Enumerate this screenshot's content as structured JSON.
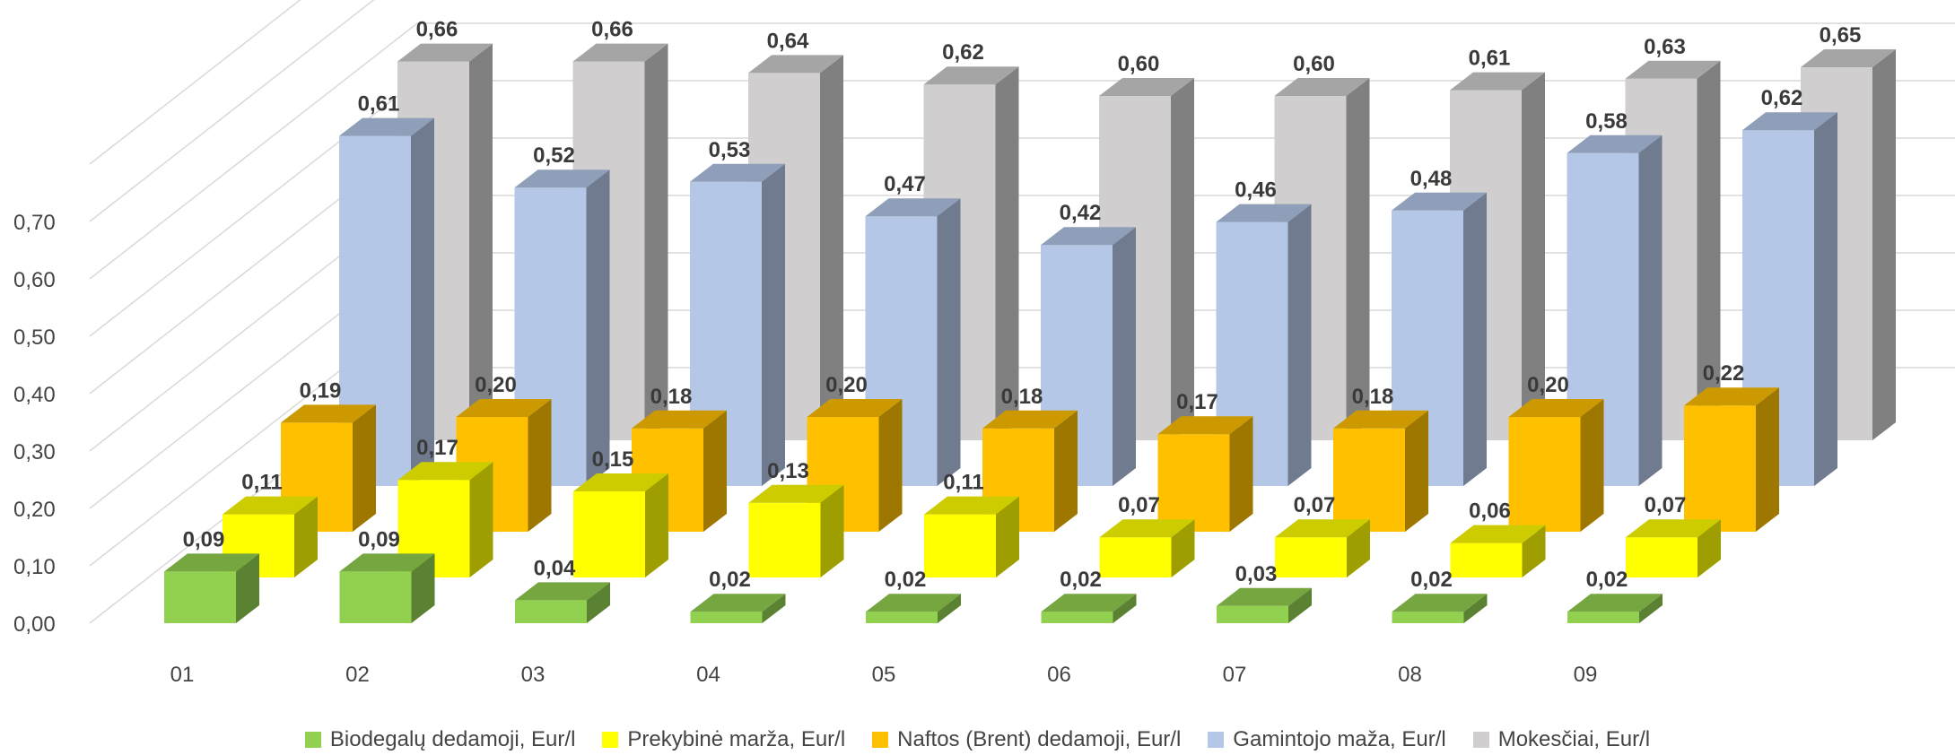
{
  "chart_data": {
    "type": "bar",
    "title": "",
    "xlabel": "",
    "ylabel": "",
    "categories": [
      "01",
      "02",
      "03",
      "04",
      "05",
      "06",
      "07",
      "08",
      "09"
    ],
    "y_ticks": [
      "0,00",
      "0,10",
      "0,20",
      "0,30",
      "0,40",
      "0,50",
      "0,60",
      "0,70"
    ],
    "ylim": [
      0,
      0.7
    ],
    "grid": true,
    "legend_position": "bottom",
    "series": [
      {
        "name": "Biodegalų dedamoji, Eur/l",
        "color": "#92d050",
        "values": [
          0.09,
          0.09,
          0.04,
          0.02,
          0.02,
          0.02,
          0.03,
          0.02,
          0.02
        ],
        "labels": [
          "0,09",
          "0,09",
          "0,04",
          "0,02",
          "0,02",
          "0,02",
          "0,03",
          "0,02",
          "0,02"
        ]
      },
      {
        "name": "Prekybinė marža, Eur/l",
        "color": "#ffff00",
        "values": [
          0.11,
          0.17,
          0.15,
          0.13,
          0.11,
          0.07,
          0.07,
          0.06,
          0.07
        ],
        "labels": [
          "0,11",
          "0,17",
          "0,15",
          "0,13",
          "0,11",
          "0,07",
          "0,07",
          "0,06",
          "0,07"
        ]
      },
      {
        "name": "Naftos (Brent) dedamoji, Eur/l",
        "color": "#ffc000",
        "values": [
          0.19,
          0.2,
          0.18,
          0.2,
          0.18,
          0.17,
          0.18,
          0.2,
          0.22
        ],
        "labels": [
          "0,19",
          "0,20",
          "0,18",
          "0,20",
          "0,18",
          "0,17",
          "0,18",
          "0,20",
          "0,22"
        ]
      },
      {
        "name": "Gamintojo maža, Eur/l",
        "color": "#b4c7e7",
        "values": [
          0.61,
          0.52,
          0.53,
          0.47,
          0.42,
          0.46,
          0.48,
          0.58,
          0.62
        ],
        "labels": [
          "0,61",
          "0,52",
          "0,53",
          "0,47",
          "0,42",
          "0,46",
          "0,48",
          "0,58",
          "0,62"
        ]
      },
      {
        "name": "Mokesčiai, Eur/l",
        "color": "#d0cece",
        "values": [
          0.66,
          0.66,
          0.64,
          0.62,
          0.6,
          0.6,
          0.61,
          0.63,
          0.65
        ],
        "labels": [
          "0,66",
          "0,66",
          "0,64",
          "0,62",
          "0,60",
          "0,60",
          "0,61",
          "0,63",
          "0,65"
        ]
      }
    ]
  }
}
